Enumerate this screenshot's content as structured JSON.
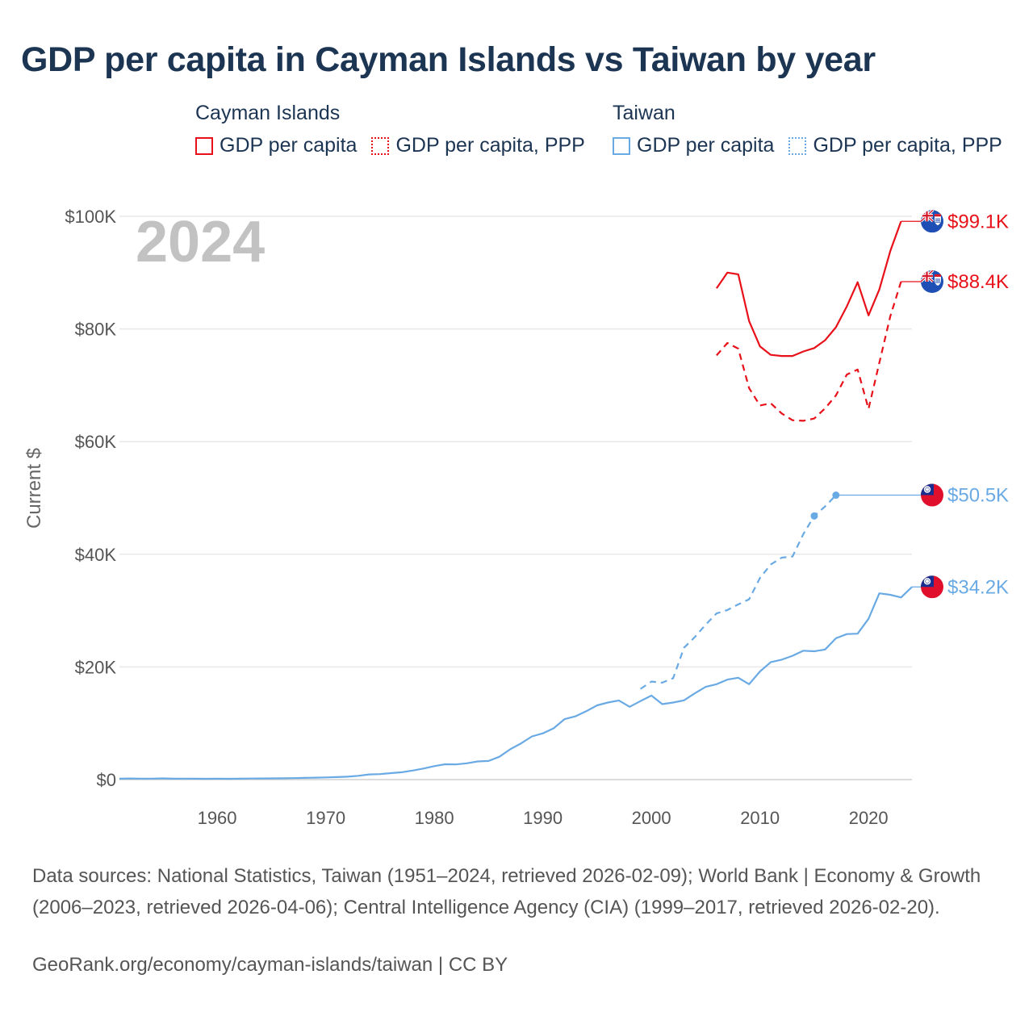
{
  "title": "GDP per capita in Cayman Islands vs Taiwan by year",
  "legend": {
    "groups": [
      {
        "name": "Cayman Islands",
        "color": "#e8111a",
        "items": [
          {
            "label": "GDP per capita",
            "style": "solid"
          },
          {
            "label": "GDP per capita, PPP",
            "style": "dotted"
          }
        ]
      },
      {
        "name": "Taiwan",
        "color": "#6aaae4",
        "items": [
          {
            "label": "GDP per capita",
            "style": "solid"
          },
          {
            "label": "GDP per capita, PPP",
            "style": "dotted"
          }
        ]
      }
    ]
  },
  "chart_data": {
    "type": "line",
    "title": "GDP per capita in Cayman Islands vs Taiwan by year",
    "year_label": "2024",
    "ylabel": "Current $",
    "xlabel": "",
    "xlim": [
      1951,
      2024
    ],
    "ylim": [
      0,
      100000
    ],
    "y_ticks": [
      0,
      20000,
      40000,
      60000,
      80000,
      100000
    ],
    "y_tick_labels": [
      "$0",
      "$20K",
      "$40K",
      "$60K",
      "$80K",
      "$100K"
    ],
    "x_ticks": [
      1960,
      1970,
      1980,
      1990,
      2000,
      2010,
      2020
    ],
    "x_tick_labels": [
      "1960",
      "1970",
      "1980",
      "1990",
      "2000",
      "2010",
      "2020"
    ],
    "grid": true,
    "series": [
      {
        "name": "Cayman Islands GDP per capita",
        "country": "Cayman Islands",
        "style": "solid",
        "color": "#e8111a",
        "end_label": "$99.1K",
        "end_value": 99100,
        "x": [
          2006,
          2007,
          2008,
          2009,
          2010,
          2011,
          2012,
          2013,
          2014,
          2015,
          2016,
          2017,
          2018,
          2019,
          2020,
          2021,
          2022,
          2023
        ],
        "y": [
          87200,
          90000,
          89700,
          81400,
          76900,
          75400,
          75200,
          75200,
          76000,
          76600,
          78000,
          80300,
          84000,
          88300,
          82400,
          87000,
          93800,
          99100
        ]
      },
      {
        "name": "Cayman Islands GDP per capita, PPP",
        "country": "Cayman Islands",
        "style": "dashed",
        "color": "#e8111a",
        "end_label": "$88.4K",
        "end_value": 88400,
        "x": [
          2006,
          2007,
          2008,
          2009,
          2010,
          2011,
          2012,
          2013,
          2014,
          2015,
          2016,
          2017,
          2018,
          2019,
          2020,
          2021,
          2022,
          2023
        ],
        "y": [
          75300,
          77500,
          76500,
          69500,
          66400,
          66800,
          65000,
          63800,
          63700,
          64100,
          65900,
          68200,
          71900,
          72800,
          65800,
          74000,
          82200,
          88400
        ]
      },
      {
        "name": "Taiwan GDP per capita",
        "country": "Taiwan",
        "style": "solid",
        "color": "#6aaae4",
        "end_label": "$34.2K",
        "end_value": 34200,
        "x": [
          1951,
          1952,
          1953,
          1954,
          1955,
          1956,
          1957,
          1958,
          1959,
          1960,
          1961,
          1962,
          1963,
          1964,
          1965,
          1966,
          1967,
          1968,
          1969,
          1970,
          1971,
          1972,
          1973,
          1974,
          1975,
          1976,
          1977,
          1978,
          1979,
          1980,
          1981,
          1982,
          1983,
          1984,
          1985,
          1986,
          1987,
          1988,
          1989,
          1990,
          1991,
          1992,
          1993,
          1994,
          1995,
          1996,
          1997,
          1998,
          1999,
          2000,
          2001,
          2002,
          2003,
          2004,
          2005,
          2006,
          2007,
          2008,
          2009,
          2010,
          2011,
          2012,
          2013,
          2014,
          2015,
          2016,
          2017,
          2018,
          2019,
          2020,
          2021,
          2022,
          2023,
          2024
        ],
        "y": [
          154,
          196,
          177,
          179,
          213,
          160,
          175,
          152,
          150,
          163,
          150,
          164,
          180,
          207,
          214,
          232,
          265,
          303,
          346,
          389,
          442,
          519,
          680,
          914,
          978,
          1142,
          1306,
          1607,
          1962,
          2389,
          2728,
          2700,
          2890,
          3226,
          3314,
          4054,
          5387,
          6428,
          7670,
          8216,
          9116,
          10726,
          11239,
          12137,
          13182,
          13676,
          14060,
          12920,
          13938,
          14908,
          13397,
          13686,
          14066,
          15317,
          16456,
          16934,
          17757,
          18081,
          16933,
          19197,
          20866,
          21295,
          21973,
          22874,
          22780,
          23091,
          25080,
          25838,
          25908,
          28549,
          33059,
          32811,
          32340,
          34200
        ]
      },
      {
        "name": "Taiwan GDP per capita, PPP",
        "country": "Taiwan",
        "style": "dashed",
        "color": "#6aaae4",
        "end_label": "$50.5K",
        "end_value": 50500,
        "x": [
          1999,
          2000,
          2001,
          2002,
          2003,
          2004,
          2005,
          2006,
          2007,
          2008,
          2009,
          2010,
          2011,
          2012,
          2013,
          2014,
          2015,
          2016,
          2017
        ],
        "y": [
          16100,
          17400,
          17200,
          18000,
          23400,
          25300,
          27500,
          29500,
          30100,
          31100,
          32000,
          35800,
          38200,
          39400,
          39600,
          43600,
          46800,
          48500,
          50500
        ],
        "markers": [
          2015,
          2017
        ]
      }
    ]
  },
  "sources": "Data sources: National Statistics, Taiwan (1951–2024, retrieved 2026-02-09); World Bank | Economy & Growth (2006–2023, retrieved 2026-04-06); Central Intelligence Agency (CIA) (1999–2017, retrieved 2026-02-20).",
  "footer": "GeoRank.org/economy/cayman-islands/taiwan | CC BY"
}
